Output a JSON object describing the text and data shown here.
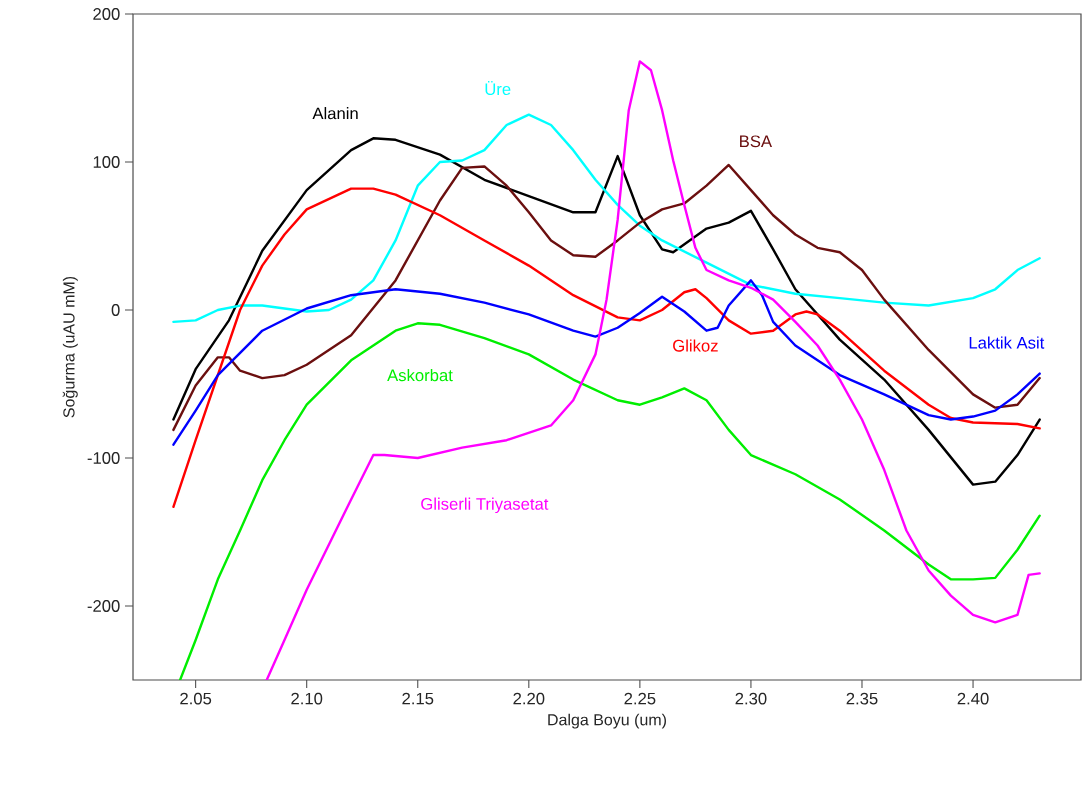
{
  "chart_data": {
    "type": "line",
    "xlabel": "Dalga Boyu (um)",
    "ylabel": "Soğurma (uAU mM)",
    "xlim": [
      2.0218,
      2.4486
    ],
    "ylim": [
      -250,
      200
    ],
    "xticks": [
      {
        "value": 2.05,
        "label": "2.05"
      },
      {
        "value": 2.1,
        "label": "2.10"
      },
      {
        "value": 2.15,
        "label": "2.15"
      },
      {
        "value": 2.2,
        "label": "2.20"
      },
      {
        "value": 2.25,
        "label": "2.25"
      },
      {
        "value": 2.3,
        "label": "2.30"
      },
      {
        "value": 2.35,
        "label": "2.35"
      },
      {
        "value": 2.4,
        "label": "2.40"
      }
    ],
    "yticks": [
      -200,
      -100,
      0,
      100,
      200
    ],
    "grid": false,
    "legend": false,
    "marker": "none",
    "line_style": "solid",
    "series": [
      {
        "name": "Alanin",
        "color": "#000000",
        "x": [
          2.04,
          2.05,
          2.065,
          2.08,
          2.1,
          2.12,
          2.13,
          2.14,
          2.16,
          2.18,
          2.2,
          2.22,
          2.23,
          2.24,
          2.25,
          2.26,
          2.265,
          2.28,
          2.29,
          2.3,
          2.31,
          2.32,
          2.34,
          2.36,
          2.38,
          2.4,
          2.41,
          2.42,
          2.43
        ],
        "values": [
          -74,
          -40,
          -7,
          40,
          81,
          108,
          116,
          115,
          105,
          88,
          77,
          66,
          66,
          104,
          64,
          41,
          39,
          55,
          59,
          67,
          41,
          14,
          -20,
          -47,
          -81,
          -118,
          -116,
          -98,
          -74
        ]
      },
      {
        "name": "Üre",
        "color": "#00ffff",
        "x": [
          2.04,
          2.05,
          2.06,
          2.07,
          2.08,
          2.1,
          2.11,
          2.12,
          2.13,
          2.14,
          2.15,
          2.16,
          2.17,
          2.18,
          2.19,
          2.2,
          2.21,
          2.22,
          2.23,
          2.24,
          2.25,
          2.26,
          2.28,
          2.3,
          2.32,
          2.34,
          2.36,
          2.38,
          2.4,
          2.41,
          2.42,
          2.43
        ],
        "values": [
          -8,
          -7,
          0,
          3,
          3,
          -1,
          0,
          7,
          20,
          47,
          84,
          100,
          101,
          108,
          125,
          132,
          125,
          108,
          88,
          71,
          57,
          47,
          32,
          17,
          11,
          8,
          5,
          3,
          8,
          14,
          27,
          35
        ]
      },
      {
        "name": "BSA",
        "color": "#6b0f0f",
        "x": [
          2.04,
          2.05,
          2.06,
          2.065,
          2.07,
          2.08,
          2.09,
          2.1,
          2.12,
          2.14,
          2.16,
          2.17,
          2.18,
          2.19,
          2.2,
          2.21,
          2.22,
          2.23,
          2.24,
          2.25,
          2.26,
          2.27,
          2.28,
          2.29,
          2.3,
          2.31,
          2.32,
          2.33,
          2.34,
          2.35,
          2.36,
          2.38,
          2.4,
          2.41,
          2.42,
          2.43
        ],
        "values": [
          -81,
          -51,
          -32,
          -32,
          -41,
          -46,
          -44,
          -37,
          -17,
          20,
          74,
          96,
          97,
          84,
          66,
          47,
          37,
          36,
          47,
          59,
          68,
          72,
          84,
          98,
          81,
          64,
          51,
          42,
          39,
          27,
          7,
          -27,
          -57,
          -66,
          -64,
          -46
        ]
      },
      {
        "name": "Glikoz",
        "color": "#ff0000",
        "x": [
          2.04,
          2.05,
          2.06,
          2.07,
          2.08,
          2.09,
          2.1,
          2.12,
          2.13,
          2.14,
          2.16,
          2.18,
          2.2,
          2.22,
          2.24,
          2.25,
          2.26,
          2.27,
          2.275,
          2.28,
          2.29,
          2.3,
          2.31,
          2.32,
          2.325,
          2.33,
          2.34,
          2.36,
          2.38,
          2.39,
          2.4,
          2.42,
          2.43
        ],
        "values": [
          -133,
          -88,
          -44,
          0,
          30,
          51,
          68,
          82,
          82,
          78,
          64,
          47,
          30,
          10,
          -5,
          -7,
          0,
          12,
          14,
          8,
          -7,
          -16,
          -14,
          -3,
          -1,
          -3,
          -14,
          -41,
          -64,
          -73,
          -76,
          -77,
          -80
        ]
      },
      {
        "name": "Laktik Asit",
        "color": "#0000ff",
        "x": [
          2.04,
          2.05,
          2.06,
          2.08,
          2.1,
          2.12,
          2.14,
          2.16,
          2.18,
          2.2,
          2.22,
          2.23,
          2.24,
          2.25,
          2.26,
          2.27,
          2.28,
          2.285,
          2.29,
          2.3,
          2.305,
          2.31,
          2.32,
          2.34,
          2.36,
          2.38,
          2.39,
          2.4,
          2.41,
          2.42,
          2.43
        ],
        "values": [
          -91,
          -68,
          -44,
          -14,
          1,
          10,
          14,
          11,
          5,
          -3,
          -14,
          -18,
          -12,
          -2,
          9,
          -1,
          -14,
          -12,
          3,
          20,
          10,
          -8,
          -24,
          -44,
          -57,
          -71,
          -74,
          -72,
          -68,
          -57,
          -43
        ]
      },
      {
        "name": "Askorbat",
        "color": "#00ee00",
        "x": [
          2.043,
          2.05,
          2.06,
          2.07,
          2.08,
          2.09,
          2.1,
          2.12,
          2.14,
          2.15,
          2.16,
          2.18,
          2.2,
          2.22,
          2.24,
          2.25,
          2.26,
          2.27,
          2.28,
          2.29,
          2.3,
          2.32,
          2.34,
          2.36,
          2.38,
          2.39,
          2.4,
          2.41,
          2.42,
          2.43
        ],
        "values": [
          -250,
          -223,
          -182,
          -149,
          -115,
          -88,
          -64,
          -34,
          -14,
          -9,
          -10,
          -19,
          -30,
          -47,
          -61,
          -64,
          -59,
          -53,
          -61,
          -81,
          -98,
          -111,
          -128,
          -149,
          -172,
          -182,
          -182,
          -181,
          -162,
          -139
        ]
      },
      {
        "name": "Gliserli Triyasetat",
        "color": "#ff00ff",
        "x": [
          2.082,
          2.09,
          2.1,
          2.12,
          2.13,
          2.135,
          2.15,
          2.17,
          2.19,
          2.21,
          2.22,
          2.23,
          2.235,
          2.24,
          2.245,
          2.25,
          2.255,
          2.26,
          2.265,
          2.27,
          2.275,
          2.28,
          2.29,
          2.3,
          2.31,
          2.32,
          2.33,
          2.34,
          2.35,
          2.36,
          2.37,
          2.38,
          2.39,
          2.4,
          2.41,
          2.42,
          2.425,
          2.43
        ],
        "values": [
          -250,
          -223,
          -189,
          -128,
          -98,
          -98,
          -100,
          -93,
          -88,
          -78,
          -61,
          -30,
          7,
          61,
          135,
          168,
          162,
          135,
          101,
          71,
          42,
          27,
          20,
          15,
          7,
          -8,
          -24,
          -47,
          -74,
          -108,
          -149,
          -176,
          -193,
          -206,
          -211,
          -206,
          -179,
          -178
        ]
      }
    ]
  }
}
